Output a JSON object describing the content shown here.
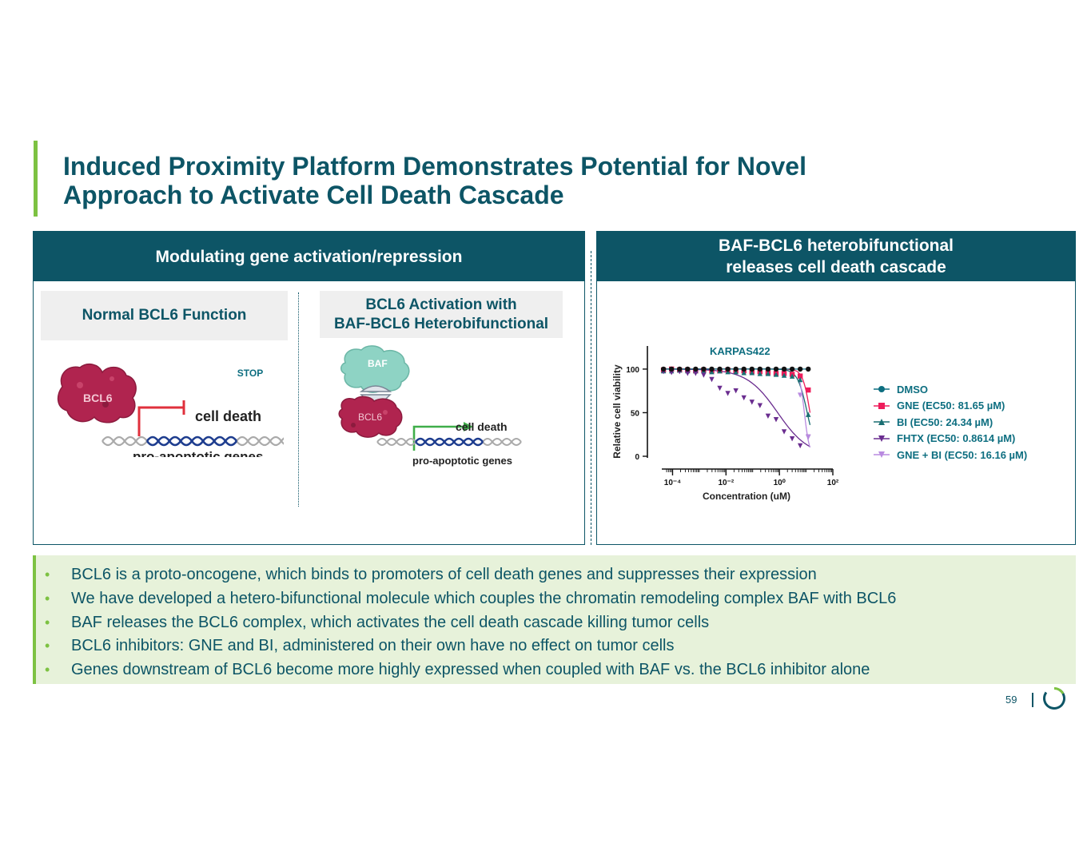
{
  "title": {
    "line1": "Induced Proximity Platform Demonstrates Potential for Novel",
    "line2": "Approach to Activate Cell Death Cascade"
  },
  "left_panel": {
    "header": "Modulating gene activation/repression",
    "normal": {
      "heading": "Normal BCL6 Function",
      "protein_label": "BCL6",
      "stop_label": "STOP",
      "effect_label": "cell death",
      "gene_label": "pro-apoptotic genes"
    },
    "activation": {
      "heading_line1": "BCL6 Activation with",
      "heading_line2": "BAF-BCL6 Heterobifunctional",
      "baf_label": "BAF",
      "protein_label": "BCL6",
      "effect_label": "cell death",
      "gene_label": "pro-apoptotic genes"
    }
  },
  "right_panel": {
    "header_line1": "BAF-BCL6 heterobifunctional",
    "header_line2": "releases cell death cascade"
  },
  "chart_data": {
    "type": "scatter",
    "title": "KARPAS422",
    "xlabel": "Concentration (uM)",
    "ylabel": "Relative cell viability",
    "xscale": "log",
    "xlim": [
      3e-05,
      100
    ],
    "ylim": [
      0,
      110
    ],
    "yticks": [
      "0",
      "50",
      "100"
    ],
    "xticks": [
      "10⁻⁴",
      "10⁻²",
      "10⁰",
      "10²"
    ],
    "legend_position": "right",
    "series": [
      {
        "name": "DMSO",
        "marker": "circle",
        "color": "#0d6e80",
        "x": [
          4.57e-05,
          9.14e-05,
          0.000183,
          0.000366,
          0.000731,
          0.00146,
          0.00293,
          0.00585,
          0.0117,
          0.0234,
          0.0468,
          0.0937,
          0.187,
          0.375,
          0.75,
          1.5,
          3.0,
          6.0,
          12.0
        ],
        "y": [
          100,
          100,
          100,
          100,
          100,
          100,
          100,
          100,
          100,
          100,
          100,
          100,
          100,
          100,
          100,
          100,
          100,
          100,
          100
        ]
      },
      {
        "name": "GNE (EC50: 81.65 µM)",
        "marker": "square",
        "color": "#ee1c5b",
        "x": [
          4.57e-05,
          9.14e-05,
          0.000183,
          0.000366,
          0.000731,
          0.00146,
          0.00293,
          0.00585,
          0.0117,
          0.0234,
          0.0468,
          0.0937,
          0.187,
          0.375,
          0.75,
          1.5,
          3.0,
          6.0,
          12.0
        ],
        "y": [
          99,
          100,
          99,
          99,
          98,
          99,
          98,
          98,
          99,
          98,
          98,
          97,
          97,
          96,
          95,
          95,
          94,
          92,
          76
        ]
      },
      {
        "name": "BI (EC50: 24.34 µM)",
        "marker": "triangle-up",
        "color": "#1a6e72",
        "x": [
          4.57e-05,
          9.14e-05,
          0.000183,
          0.000366,
          0.000731,
          0.00146,
          0.00293,
          0.00585,
          0.0117,
          0.0234,
          0.0468,
          0.0937,
          0.187,
          0.375,
          0.75,
          1.5,
          3.0,
          6.0,
          12.0
        ],
        "y": [
          98,
          98,
          99,
          98,
          98,
          98,
          97,
          98,
          97,
          97,
          96,
          96,
          95,
          95,
          94,
          93,
          92,
          88,
          48
        ]
      },
      {
        "name": "FHTX (EC50: 0.8614 µM)",
        "marker": "triangle-down",
        "color": "#6a2d8f",
        "x": [
          4.57e-05,
          9.14e-05,
          0.000183,
          0.000366,
          0.000731,
          0.00146,
          0.00293,
          0.00585,
          0.0117,
          0.0234,
          0.0468,
          0.0937,
          0.187,
          0.375,
          0.75,
          1.5,
          3.0,
          6.0,
          12.0
        ],
        "y": [
          97,
          96,
          97,
          95,
          95,
          93,
          88,
          78,
          72,
          75,
          67,
          62,
          58,
          46,
          42,
          28,
          20,
          12,
          22
        ]
      },
      {
        "name": "GNE + BI (EC50: 16.16 µM)",
        "marker": "triangle-down",
        "color": "#b98ae0",
        "x": [
          6.0,
          12.0
        ],
        "y": [
          70,
          22
        ]
      }
    ]
  },
  "bullets": [
    "BCL6 is a proto-oncogene, which binds to promoters of cell death genes and suppresses their expression",
    "We have developed a hetero-bifunctional molecule which couples the chromatin remodeling complex BAF with BCL6",
    "BAF releases the BCL6 complex, which activates the cell death cascade killing tumor cells",
    "BCL6 inhibitors: GNE and BI, administered on their own have no effect on tumor cells",
    "Genes downstream of BCL6 become more highly expressed when coupled with BAF vs. the BCL6 inhibitor alone"
  ],
  "bullet_marker": "•",
  "footer": {
    "page_number": "59",
    "logo_icon": "circle-ring-logo"
  },
  "colors": {
    "teal_dark": "#0d5566",
    "accent_green": "#7dc242",
    "bullet_bg": "#e7f2da",
    "protein_red": "#b0244f",
    "baf_mint": "#8ed3c4"
  }
}
